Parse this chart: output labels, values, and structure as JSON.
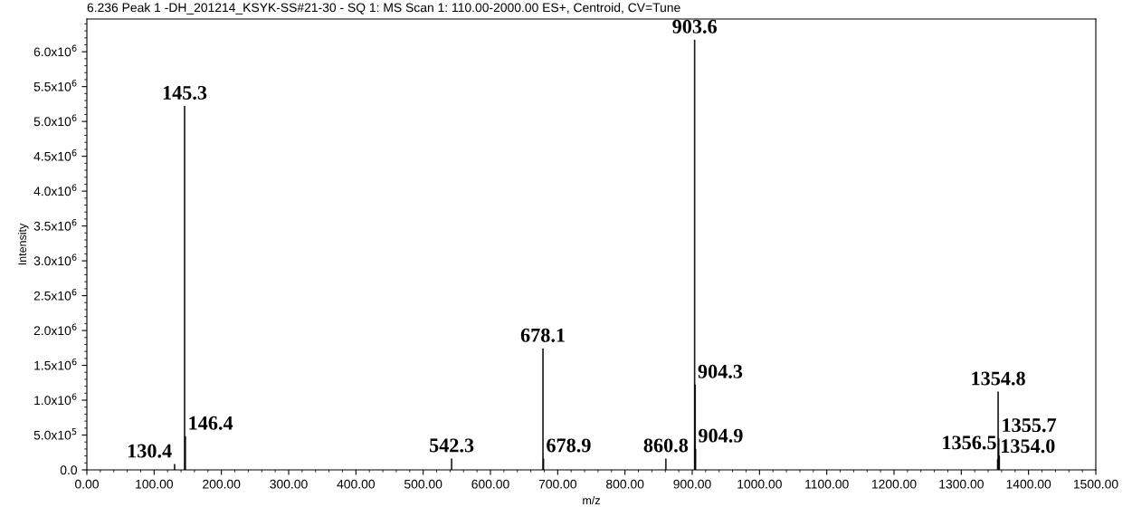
{
  "chart_data": {
    "type": "bar",
    "title": "6.236 Peak 1 -DH_201214_KSYK-SS#21-30 - SQ 1: MS Scan 1: 110.00-2000.00 ES+, Centroid, CV=Tune",
    "xlabel": "m/z",
    "ylabel": "Intensity",
    "color": "#000000",
    "x": [
      130.4,
      145.3,
      146.4,
      542.3,
      678.1,
      678.9,
      860.8,
      903.6,
      904.3,
      904.9,
      1354.0,
      1354.8,
      1355.7,
      1356.5
    ],
    "values": [
      80000,
      5220000,
      480000,
      160000,
      1740000,
      160000,
      160000,
      6170000,
      1220000,
      300000,
      150000,
      1120000,
      450000,
      200000
    ],
    "annotations": [
      {
        "text": "145.3",
        "x": 145.3,
        "y": 5220000
      },
      {
        "text": "146.4",
        "x": 146.4,
        "y": 480000
      },
      {
        "text": "130.4",
        "x": 130.4,
        "y": 80000
      },
      {
        "text": "542.3",
        "x": 542.3,
        "y": 160000
      },
      {
        "text": "678.1",
        "x": 678.1,
        "y": 1740000
      },
      {
        "text": "678.9",
        "x": 678.9,
        "y": 160000
      },
      {
        "text": "860.8",
        "x": 860.8,
        "y": 160000
      },
      {
        "text": "903.6",
        "x": 903.6,
        "y": 6170000
      },
      {
        "text": "904.3",
        "x": 904.3,
        "y": 1220000
      },
      {
        "text": "904.9",
        "x": 904.9,
        "y": 300000
      },
      {
        "text": "1354.8",
        "x": 1354.8,
        "y": 1120000
      },
      {
        "text": "1355.7",
        "x": 1355.7,
        "y": 450000
      },
      {
        "text": "1356.5",
        "x": 1356.5,
        "y": 200000
      },
      {
        "text": "1354.0",
        "x": 1354.0,
        "y": 150000
      }
    ],
    "xlim": [
      0,
      1500
    ],
    "xticks": [
      {
        "value": 0,
        "label": "0.00"
      },
      {
        "value": 100,
        "label": "100.00"
      },
      {
        "value": 200,
        "label": "200.00"
      },
      {
        "value": 300,
        "label": "300.00"
      },
      {
        "value": 400,
        "label": "400.00"
      },
      {
        "value": 500,
        "label": "500.00"
      },
      {
        "value": 600,
        "label": "600.00"
      },
      {
        "value": 700,
        "label": "700.00"
      },
      {
        "value": 800,
        "label": "800.00"
      },
      {
        "value": 900,
        "label": "900.00"
      },
      {
        "value": 1000,
        "label": "1000.00"
      },
      {
        "value": 1100,
        "label": "1100.00"
      },
      {
        "value": 1200,
        "label": "1200.00"
      },
      {
        "value": 1300,
        "label": "1300.00"
      },
      {
        "value": 1400,
        "label": "1400.00"
      },
      {
        "value": 1500,
        "label": "1500.00"
      }
    ],
    "ylim": [
      0,
      6470000
    ],
    "yticks": [
      {
        "value": 0,
        "label": "0.0"
      },
      {
        "value": 500000,
        "label": "5.0x10$^{5}$"
      },
      {
        "value": 1000000,
        "label": "1.0x10$^{6}$"
      },
      {
        "value": 1500000,
        "label": "1.5x10$^{6}$"
      },
      {
        "value": 2000000,
        "label": "2.0x10$^{6}$"
      },
      {
        "value": 2500000,
        "label": "2.5x10$^{6}$"
      },
      {
        "value": 3000000,
        "label": "3.0x10$^{6}$"
      },
      {
        "value": 3500000,
        "label": "3.5x10$^{6}$"
      },
      {
        "value": 4000000,
        "label": "4.0x10$^{6}$"
      },
      {
        "value": 4500000,
        "label": "4.5x10$^{6}$"
      },
      {
        "value": 5000000,
        "label": "5.0x10$^{6}$"
      },
      {
        "value": 5500000,
        "label": "5.5x10$^{6}$"
      },
      {
        "value": 6000000,
        "label": "6.0x10$^{6}$"
      }
    ],
    "grid": false,
    "legend": false
  }
}
